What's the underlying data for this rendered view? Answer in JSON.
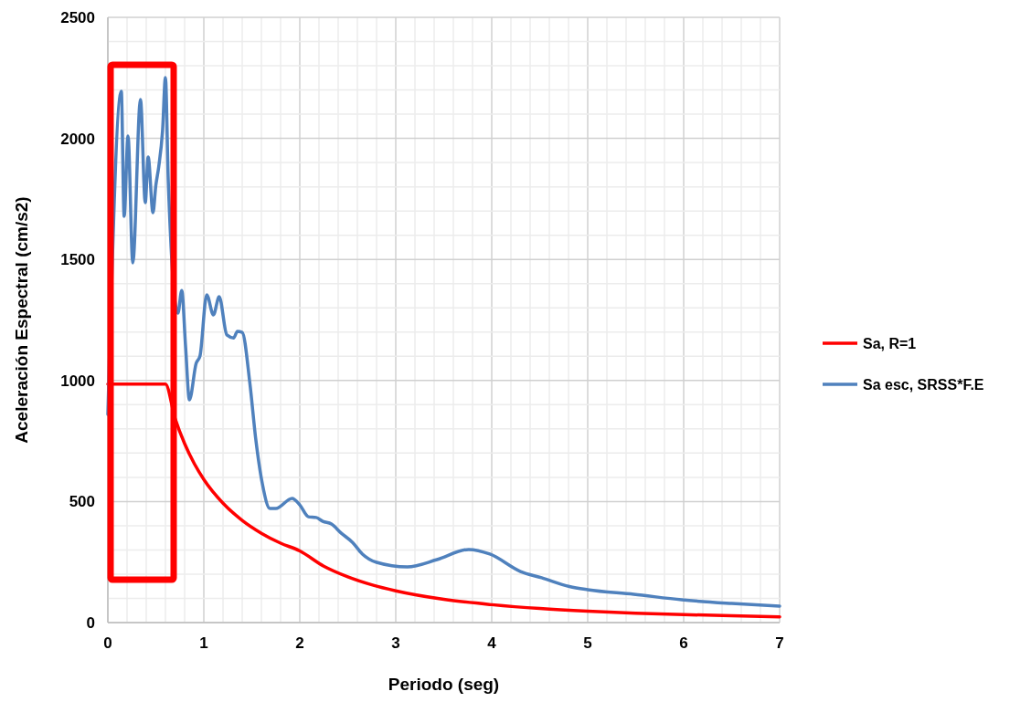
{
  "chart_data": {
    "type": "line",
    "xlabel": "Periodo (seg)",
    "ylabel": "Aceleración Espectral (cm/s2)",
    "xlim": [
      0,
      7
    ],
    "xticks": [
      0,
      1,
      2,
      3,
      4,
      5,
      6,
      7
    ],
    "ylim": [
      0,
      2500
    ],
    "yticks": [
      0,
      500,
      1000,
      1500,
      2000,
      2500
    ],
    "grid": true,
    "legend": "right",
    "marker": "none",
    "line_style": "solid",
    "series": [
      {
        "name": "Sa, R=1",
        "color": "#ff0000",
        "x": [
          0,
          0.6,
          0.7,
          0.8,
          0.9,
          1.0,
          1.2,
          1.4,
          1.6,
          1.8,
          2.0,
          2.25,
          2.5,
          2.75,
          3,
          3.5,
          4,
          4.5,
          5,
          5.5,
          6,
          6.5,
          7
        ],
        "values": [
          985,
          985,
          844,
          739,
          657,
          591,
          493,
          422,
          369,
          328,
          296,
          233,
          189,
          156,
          131,
          96,
          74,
          58,
          47,
          39,
          33,
          28,
          24
        ]
      },
      {
        "name": "Sa esc, SRSS*F.E",
        "color": "#4f81bd",
        "x": [
          0,
          0.14,
          0.17,
          0.21,
          0.26,
          0.34,
          0.39,
          0.42,
          0.47,
          0.5,
          0.53,
          0.57,
          0.6,
          0.63,
          0.73,
          0.77,
          0.81,
          0.85,
          0.92,
          0.96,
          1.03,
          1.1,
          1.16,
          1.24,
          1.31,
          1.35,
          1.4,
          1.48,
          1.54,
          1.61,
          1.69,
          1.75,
          1.92,
          2.0,
          2.09,
          2.17,
          2.24,
          2.33,
          2.43,
          2.55,
          2.65,
          2.8,
          3.12,
          3.43,
          3.76,
          3.98,
          4.3,
          4.52,
          4.81,
          5.0,
          5.48,
          5.98,
          6.5,
          7.0
        ],
        "values": [
          860,
          2195,
          1678,
          2010,
          1486,
          2161,
          1735,
          1923,
          1693,
          1806,
          1882,
          2032,
          2251,
          1818,
          1278,
          1372,
          1139,
          920,
          1071,
          1101,
          1354,
          1271,
          1346,
          1188,
          1176,
          1203,
          1199,
          988,
          762,
          573,
          471,
          471,
          513,
          486,
          437,
          434,
          418,
          407,
          370,
          331,
          284,
          249,
          230,
          260,
          302,
          283,
          211,
          185,
          149,
          136,
          117,
          94,
          79,
          68
        ]
      }
    ]
  }
}
